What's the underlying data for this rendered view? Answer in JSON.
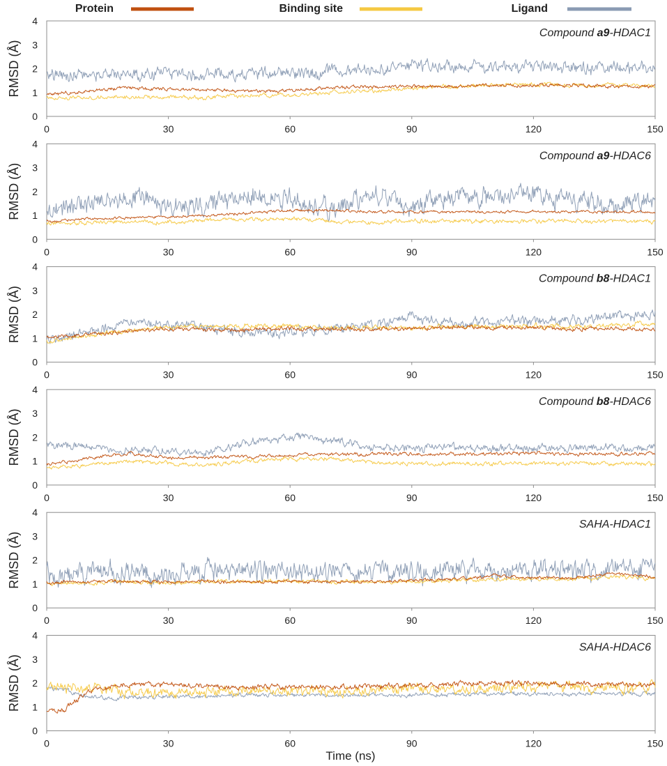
{
  "colors": {
    "Protein": "#c0500f",
    "Binding site": "#f5c842",
    "Ligand": "#8a9bb3",
    "axis": "#8c8c8c",
    "text": "#222222"
  },
  "legend": [
    {
      "name": "Protein"
    },
    {
      "name": "Binding site"
    },
    {
      "name": "Ligand"
    }
  ],
  "xlabel": "Time (ns)",
  "chart_data": [
    {
      "type": "line",
      "title_prefix": "Compound ",
      "title_bold": "a9",
      "title_suffix": "-HDAC1",
      "ylabel": "RMSD (Å)",
      "xlim": [
        0,
        150
      ],
      "ylim": [
        0,
        4
      ],
      "xticks": [
        0,
        30,
        60,
        90,
        120,
        150
      ],
      "yticks": [
        0,
        1,
        2,
        3,
        4
      ],
      "x": [
        0,
        10,
        20,
        30,
        40,
        50,
        60,
        70,
        80,
        90,
        100,
        110,
        120,
        130,
        140,
        150
      ],
      "series": [
        {
          "name": "Protein",
          "values": [
            0.9,
            1.05,
            1.2,
            1.15,
            1.1,
            1.05,
            1.1,
            1.2,
            1.25,
            1.25,
            1.25,
            1.3,
            1.3,
            1.3,
            1.25,
            1.25
          ],
          "noise": 0.05
        },
        {
          "name": "Binding site",
          "values": [
            0.75,
            0.8,
            0.8,
            0.8,
            0.8,
            0.85,
            0.9,
            1.0,
            1.05,
            1.2,
            1.25,
            1.3,
            1.35,
            1.3,
            1.3,
            1.3
          ],
          "noise": 0.06
        },
        {
          "name": "Ligand",
          "values": [
            1.8,
            1.75,
            1.75,
            1.75,
            1.75,
            1.75,
            1.8,
            1.85,
            2.0,
            2.1,
            2.1,
            2.05,
            2.1,
            2.0,
            2.05,
            2.0
          ],
          "noise": 0.18
        }
      ]
    },
    {
      "type": "line",
      "title_prefix": "Compound ",
      "title_bold": "a9",
      "title_suffix": "-HDAC6",
      "ylabel": "RMSD (Å)",
      "xlim": [
        0,
        150
      ],
      "ylim": [
        0,
        4
      ],
      "xticks": [
        0,
        30,
        60,
        90,
        120,
        150
      ],
      "yticks": [
        0,
        1,
        2,
        3,
        4
      ],
      "x": [
        0,
        10,
        20,
        30,
        40,
        50,
        60,
        70,
        80,
        90,
        100,
        110,
        120,
        130,
        140,
        150
      ],
      "series": [
        {
          "name": "Protein",
          "values": [
            0.75,
            0.85,
            0.9,
            0.95,
            1.0,
            1.1,
            1.2,
            1.2,
            1.15,
            1.15,
            1.15,
            1.15,
            1.15,
            1.15,
            1.15,
            1.15
          ],
          "noise": 0.04
        },
        {
          "name": "Binding site",
          "values": [
            0.65,
            0.7,
            0.75,
            0.7,
            0.8,
            0.85,
            0.85,
            0.75,
            0.7,
            0.75,
            0.75,
            0.75,
            0.75,
            0.75,
            0.75,
            0.75
          ],
          "noise": 0.06
        },
        {
          "name": "Ligand",
          "values": [
            1.0,
            1.5,
            1.9,
            1.3,
            1.5,
            1.8,
            1.7,
            1.2,
            1.9,
            1.3,
            1.9,
            1.8,
            1.8,
            1.7,
            1.5,
            1.8
          ],
          "noise": 0.3
        }
      ]
    },
    {
      "type": "line",
      "title_prefix": "Compound ",
      "title_bold": "b8",
      "title_suffix": "-HDAC1",
      "ylabel": "RMSD (Å)",
      "xlim": [
        0,
        150
      ],
      "ylim": [
        0,
        4
      ],
      "xticks": [
        0,
        30,
        60,
        90,
        120,
        150
      ],
      "yticks": [
        0,
        1,
        2,
        3,
        4
      ],
      "x": [
        0,
        10,
        20,
        30,
        40,
        50,
        60,
        70,
        80,
        90,
        100,
        110,
        120,
        130,
        140,
        150
      ],
      "series": [
        {
          "name": "Protein",
          "values": [
            1.0,
            1.15,
            1.3,
            1.4,
            1.35,
            1.35,
            1.4,
            1.4,
            1.4,
            1.4,
            1.45,
            1.45,
            1.45,
            1.4,
            1.4,
            1.4
          ],
          "noise": 0.06
        },
        {
          "name": "Binding site",
          "values": [
            0.85,
            1.1,
            1.3,
            1.5,
            1.5,
            1.5,
            1.5,
            1.45,
            1.45,
            1.45,
            1.5,
            1.5,
            1.5,
            1.5,
            1.55,
            1.6
          ],
          "noise": 0.07
        },
        {
          "name": "Ligand",
          "values": [
            0.9,
            1.2,
            1.7,
            1.55,
            1.4,
            1.25,
            1.2,
            1.45,
            1.5,
            2.0,
            1.6,
            1.65,
            1.7,
            1.75,
            1.9,
            2.05
          ],
          "noise": 0.15
        }
      ]
    },
    {
      "type": "line",
      "title_prefix": "Compound ",
      "title_bold": "b8",
      "title_suffix": "-HDAC6",
      "ylabel": "RMSD (Å)",
      "xlim": [
        0,
        150
      ],
      "ylim": [
        0,
        4
      ],
      "xticks": [
        0,
        30,
        60,
        90,
        120,
        150
      ],
      "yticks": [
        0,
        1,
        2,
        3,
        4
      ],
      "x": [
        0,
        10,
        20,
        30,
        40,
        50,
        60,
        70,
        80,
        90,
        100,
        110,
        120,
        130,
        140,
        150
      ],
      "series": [
        {
          "name": "Protein",
          "values": [
            0.85,
            1.1,
            1.35,
            1.15,
            1.15,
            1.2,
            1.25,
            1.3,
            1.3,
            1.3,
            1.3,
            1.3,
            1.35,
            1.3,
            1.3,
            1.3
          ],
          "noise": 0.05
        },
        {
          "name": "Binding site",
          "values": [
            0.7,
            0.85,
            1.0,
            0.9,
            0.85,
            1.0,
            1.1,
            1.1,
            0.95,
            0.9,
            0.9,
            0.9,
            0.9,
            0.9,
            0.9,
            0.9
          ],
          "noise": 0.06
        },
        {
          "name": "Ligand",
          "values": [
            1.65,
            1.6,
            1.5,
            1.4,
            1.35,
            1.8,
            2.0,
            1.9,
            1.6,
            1.55,
            1.55,
            1.55,
            1.55,
            1.55,
            1.55,
            1.55
          ],
          "noise": 0.12
        }
      ]
    },
    {
      "type": "line",
      "title_prefix": "",
      "title_bold": "",
      "title_suffix": "SAHA-HDAC1",
      "ylabel": "RMSD (Å)",
      "xlim": [
        0,
        150
      ],
      "ylim": [
        0,
        4
      ],
      "xticks": [
        0,
        30,
        60,
        90,
        120,
        150
      ],
      "yticks": [
        0,
        1,
        2,
        3,
        4
      ],
      "x": [
        0,
        10,
        20,
        30,
        40,
        50,
        60,
        70,
        80,
        90,
        100,
        110,
        120,
        130,
        140,
        150
      ],
      "series": [
        {
          "name": "Protein",
          "values": [
            1.05,
            1.1,
            1.1,
            1.1,
            1.1,
            1.1,
            1.1,
            1.1,
            1.1,
            1.15,
            1.2,
            1.35,
            1.25,
            1.25,
            1.45,
            1.3
          ],
          "noise": 0.05
        },
        {
          "name": "Binding site",
          "values": [
            1.0,
            1.05,
            1.1,
            1.05,
            1.1,
            1.1,
            1.1,
            1.1,
            1.1,
            1.1,
            1.15,
            1.2,
            1.2,
            1.2,
            1.3,
            1.25
          ],
          "noise": 0.06
        },
        {
          "name": "Ligand",
          "values": [
            1.4,
            1.5,
            1.5,
            1.35,
            1.5,
            1.5,
            1.55,
            1.5,
            1.5,
            1.55,
            1.55,
            1.6,
            1.55,
            1.5,
            1.6,
            1.6
          ],
          "noise": 0.3
        }
      ]
    },
    {
      "type": "line",
      "title_prefix": "",
      "title_bold": "",
      "title_suffix": "SAHA-HDAC6",
      "ylabel": "RMSD (Å)",
      "xlim": [
        0,
        150
      ],
      "ylim": [
        0,
        4
      ],
      "xticks": [
        0,
        30,
        60,
        90,
        120,
        150
      ],
      "yticks": [
        0,
        1,
        2,
        3,
        4
      ],
      "x": [
        0,
        5,
        10,
        20,
        30,
        40,
        50,
        60,
        70,
        80,
        90,
        100,
        110,
        120,
        130,
        140,
        150
      ],
      "series": [
        {
          "name": "Protein",
          "values": [
            0.75,
            0.95,
            1.7,
            1.9,
            1.95,
            1.85,
            1.85,
            1.85,
            1.85,
            1.85,
            1.9,
            1.95,
            2.0,
            1.95,
            1.95,
            1.95,
            1.9
          ],
          "noise": 0.08
        },
        {
          "name": "Binding site",
          "values": [
            1.85,
            1.8,
            1.8,
            1.6,
            1.6,
            1.6,
            1.7,
            1.7,
            1.65,
            1.65,
            1.8,
            1.7,
            1.8,
            1.85,
            1.85,
            1.8,
            1.85
          ],
          "noise": 0.15
        },
        {
          "name": "Ligand",
          "values": [
            1.8,
            1.7,
            1.4,
            1.4,
            1.45,
            1.45,
            1.5,
            1.5,
            1.5,
            1.5,
            1.5,
            1.5,
            1.55,
            1.55,
            1.55,
            1.55,
            1.55
          ],
          "noise": 0.06
        }
      ]
    }
  ]
}
